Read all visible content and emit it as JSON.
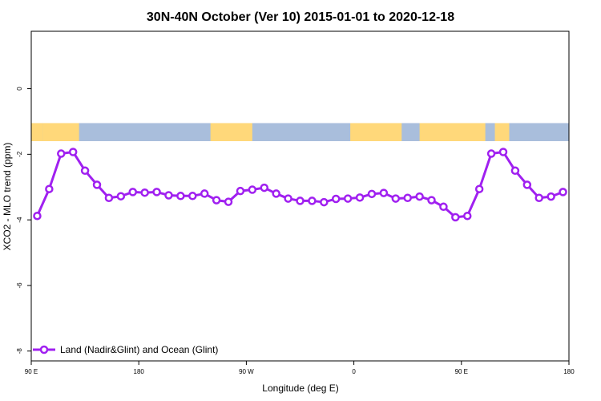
{
  "chart_data": {
    "type": "line",
    "title": "30N-40N October (Ver 10)   2015-01-01 to 2020-12-18",
    "xlabel": "Longitude (deg E)",
    "ylabel": "XCO2 - MLO trend (ppm)",
    "xlim": [
      90,
      540
    ],
    "ylim": [
      -8.3,
      1.75
    ],
    "x_ticks": [
      {
        "value": 90,
        "label": "90 E"
      },
      {
        "value": 180,
        "label": "180"
      },
      {
        "value": 270,
        "label": "90 W"
      },
      {
        "value": 360,
        "label": "0"
      },
      {
        "value": 450,
        "label": "90 E"
      },
      {
        "value": 540,
        "label": "180"
      }
    ],
    "y_ticks": [
      {
        "value": 0,
        "label": "0"
      },
      {
        "value": -2,
        "label": "-2"
      },
      {
        "value": -4,
        "label": "-4"
      },
      {
        "value": -6,
        "label": "-6"
      },
      {
        "value": -8,
        "label": "-8"
      }
    ],
    "grid": false,
    "legend_position": "bottom-left",
    "colors": {
      "series": "#a020f0",
      "land": "#ffd87a",
      "ocean": "#a9bedc"
    },
    "surface_band": {
      "y_top": -1.05,
      "y_bottom": -1.6,
      "land_ranges": [
        [
          90,
          100
        ],
        [
          100,
          130
        ],
        [
          240,
          275
        ],
        [
          357,
          400
        ],
        [
          415,
          470
        ],
        [
          478,
          490
        ]
      ]
    },
    "series": [
      {
        "name": "Land (Nadir&Glint) and Ocean (Glint)",
        "x": [
          95,
          105,
          115,
          125,
          135,
          145,
          155,
          165,
          175,
          185,
          195,
          205,
          215,
          225,
          235,
          245,
          255,
          265,
          275,
          285,
          295,
          305,
          315,
          325,
          335,
          345,
          355,
          365,
          375,
          385,
          395,
          405,
          415,
          425,
          435,
          445,
          455,
          465,
          475,
          485,
          495,
          505,
          515,
          525,
          535
        ],
        "y": [
          -3.88,
          -3.06,
          -1.98,
          -1.93,
          -2.5,
          -2.93,
          -3.33,
          -3.28,
          -3.15,
          -3.17,
          -3.15,
          -3.25,
          -3.27,
          -3.27,
          -3.2,
          -3.4,
          -3.45,
          -3.12,
          -3.08,
          -3.02,
          -3.2,
          -3.35,
          -3.42,
          -3.42,
          -3.46,
          -3.36,
          -3.35,
          -3.32,
          -3.21,
          -3.18,
          -3.35,
          -3.33,
          -3.29,
          -3.4,
          -3.6,
          -3.92,
          -3.88,
          -3.06,
          -1.98,
          -1.93,
          -2.5,
          -2.93,
          -3.33,
          -3.29,
          -3.15
        ]
      }
    ]
  }
}
